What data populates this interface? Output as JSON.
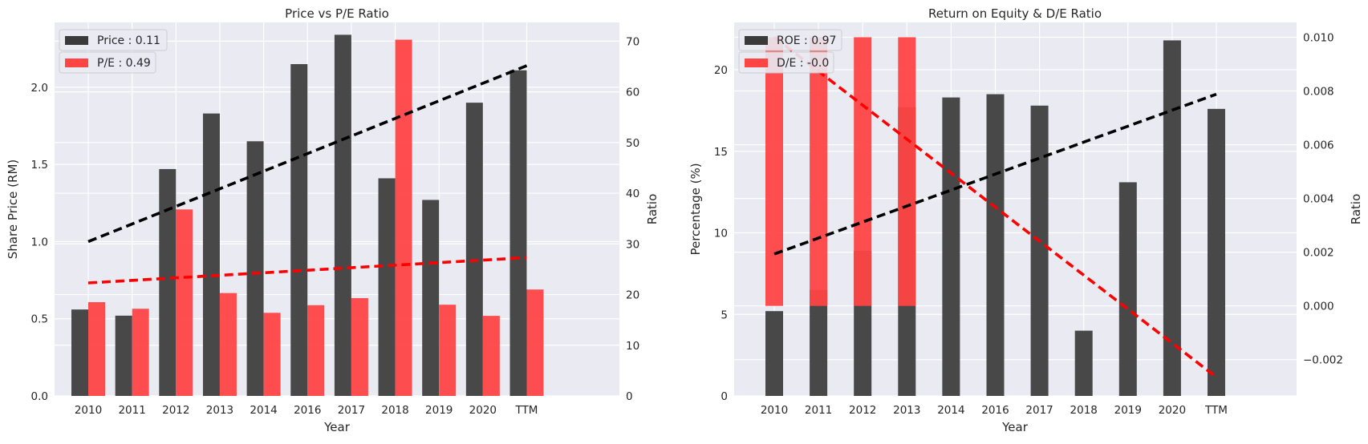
{
  "colors": {
    "background": "#ffffff",
    "plot_bg": "#eaeaf2",
    "grid": "#ffffff",
    "dark_bar": "#3a3a3a",
    "red_bar": "#ff4444",
    "trend_dark": "#000000",
    "trend_red": "#ff0000"
  },
  "chart_data": [
    {
      "type": "bar",
      "title": "Price vs P/E Ratio",
      "xlabel": "Year",
      "ylabel_left": "Share Price (RM)",
      "ylabel_right": "Ratio",
      "categories": [
        "2010",
        "2011",
        "2012",
        "2013",
        "2014",
        "2016",
        "2017",
        "2018",
        "2019",
        "2020",
        "TTM"
      ],
      "left_axis": {
        "ylim": [
          0,
          2.42
        ],
        "ticks": [
          0.0,
          0.5,
          1.0,
          1.5,
          2.0
        ],
        "tick_labels": [
          "0.0",
          "0.5",
          "1.0",
          "1.5",
          "2.0"
        ]
      },
      "right_axis": {
        "ylim": [
          0,
          73.7
        ],
        "ticks": [
          0,
          10,
          20,
          30,
          40,
          50,
          60,
          70
        ],
        "tick_labels": [
          "0",
          "10",
          "20",
          "30",
          "40",
          "50",
          "60",
          "70"
        ]
      },
      "series": [
        {
          "name": "Price : 0.11",
          "axis": "left",
          "color": "#3a3a3a",
          "values": [
            0.56,
            0.52,
            1.47,
            1.83,
            1.65,
            2.15,
            2.34,
            1.41,
            1.27,
            1.9,
            2.11
          ]
        },
        {
          "name": "P/E : 0.49",
          "axis": "right",
          "color": "#ff4444",
          "values": [
            18.5,
            17.2,
            36.8,
            20.3,
            16.4,
            17.9,
            19.3,
            70.3,
            18.0,
            15.8,
            21.0
          ]
        }
      ],
      "trendlines": [
        {
          "axis": "left",
          "color": "#000000",
          "y_start": 1.0,
          "y_end": 2.14
        },
        {
          "axis": "right",
          "color": "#ff0000",
          "y_start": 22.3,
          "y_end": 27.3
        }
      ],
      "grid": true,
      "legend": "top-left"
    },
    {
      "type": "bar",
      "title": "Return on Equity & D/E Ratio",
      "xlabel": "Year",
      "ylabel_left": "Percentage (%)",
      "ylabel_right": "Ratio",
      "categories": [
        "2010",
        "2011",
        "2012",
        "2013",
        "2014",
        "2016",
        "2017",
        "2018",
        "2019",
        "2020",
        "TTM"
      ],
      "left_axis": {
        "ylim": [
          0,
          22.9
        ],
        "ticks": [
          0,
          5,
          10,
          15,
          20
        ],
        "tick_labels": [
          "0",
          "5",
          "10",
          "15",
          "20"
        ]
      },
      "right_axis": {
        "ylim": [
          -0.00335,
          0.01055
        ],
        "ticks": [
          -0.002,
          0.0,
          0.002,
          0.004,
          0.006,
          0.008,
          0.01
        ],
        "tick_labels": [
          "−0.002",
          "0.000",
          "0.002",
          "0.004",
          "0.006",
          "0.008",
          "0.010"
        ]
      },
      "series": [
        {
          "name": "ROE : 0.97",
          "axis": "left",
          "color": "#3a3a3a",
          "values": [
            5.2,
            6.5,
            8.9,
            17.7,
            18.3,
            18.5,
            17.8,
            4.0,
            13.1,
            21.8,
            17.6
          ]
        },
        {
          "name": "D/E : -0.0",
          "axis": "right",
          "color": "#ff4444",
          "values": [
            0.0,
            0.0,
            0.0,
            0.0,
            null,
            null,
            null,
            null,
            null,
            null,
            null
          ],
          "top": 0.01
        },
        {
          "name": "",
          "axis": "right",
          "color": "#ff4444",
          "values": [
            0.01,
            0.01,
            0.01,
            0.01,
            null,
            null,
            null,
            null,
            null,
            null,
            null
          ]
        }
      ],
      "trendlines": [
        {
          "axis": "left",
          "color": "#000000",
          "y_start": 8.7,
          "y_end": 18.5
        },
        {
          "axis": "right",
          "color": "#ff0000",
          "y_start": 0.01,
          "y_end": -0.00265
        }
      ],
      "grid": true,
      "legend": "top-left"
    }
  ]
}
